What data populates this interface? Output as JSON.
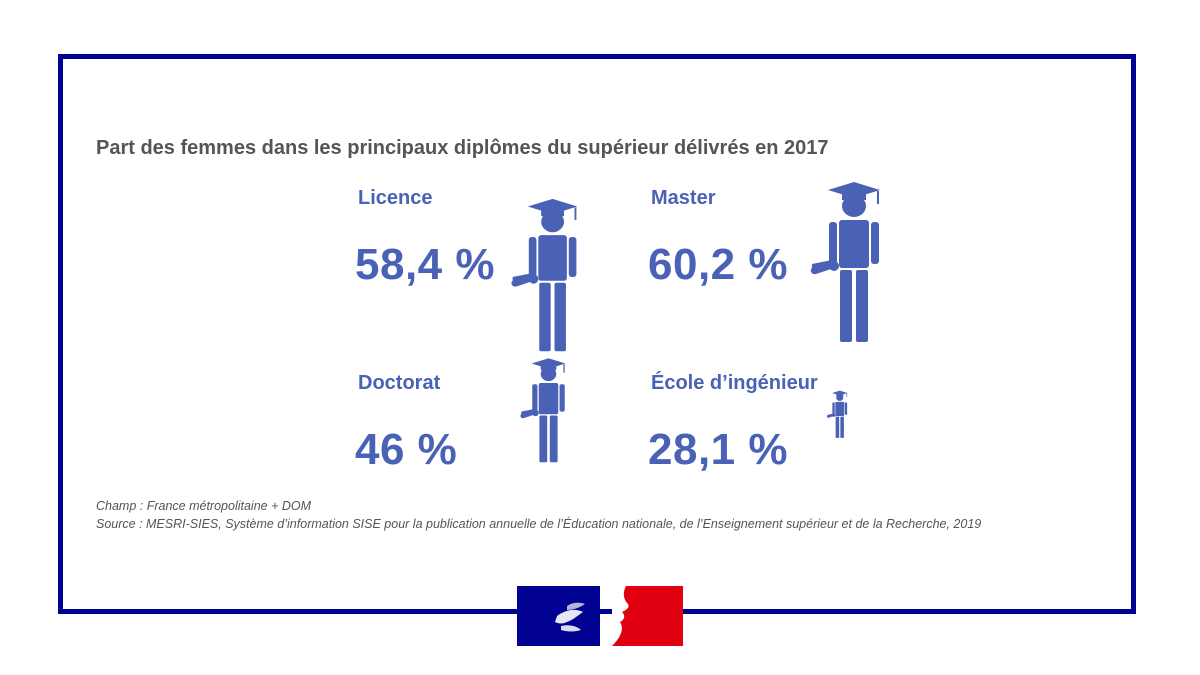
{
  "chart_data": {
    "type": "pictogram",
    "title": "Part des femmes dans les principaux diplômes du supérieur délivrés en 2017",
    "unit": "%",
    "items": [
      {
        "label": "Licence",
        "value": 58.4,
        "display": "58,4 %"
      },
      {
        "label": "Master",
        "value": 60.2,
        "display": "60,2 %"
      },
      {
        "label": "Doctorat",
        "value": 46,
        "display": "46 %"
      },
      {
        "label": "École d’ingénieur",
        "value": 28.1,
        "display": "28,1 %"
      }
    ]
  },
  "notes": {
    "champ": "Champ : France métropolitaine + DOM",
    "source": "Source : MESRI-SIES, Système d’information SISE pour la publication annuelle de l’Éducation nationale, de l’Enseignement supérieur et de la Recherche, 2019"
  },
  "colors": {
    "accent": "#4a62b5",
    "frame": "#000091",
    "title_text": "#555555",
    "flag_blue": "#000091",
    "flag_red": "#e1000f"
  }
}
